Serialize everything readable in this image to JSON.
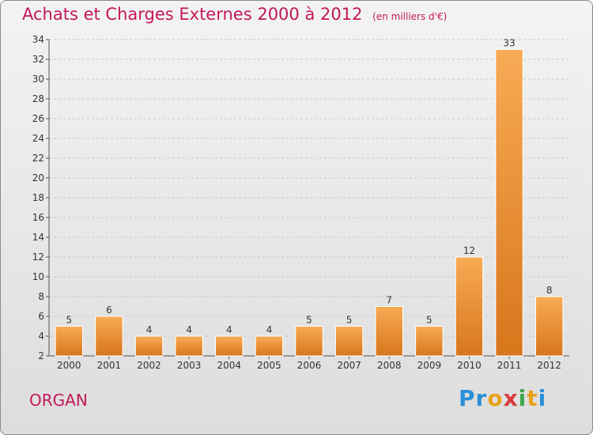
{
  "title": "Achats et Charges Externes 2000 à 2012",
  "subtitle": "(en milliers d'€)",
  "commune": "ORGAN",
  "logo": "Proxiti",
  "colors": {
    "title": "#c2185b",
    "bar_light": "#f6a54e",
    "bar_dark": "#d9771c"
  },
  "chart_data": {
    "type": "bar",
    "title": "Achats et Charges Externes 2000 à 2012",
    "subtitle": "(en milliers d'€)",
    "categories": [
      "2000",
      "2001",
      "2002",
      "2003",
      "2004",
      "2005",
      "2006",
      "2007",
      "2008",
      "2009",
      "2010",
      "2011",
      "2012"
    ],
    "values": [
      5,
      6,
      4,
      4,
      4,
      4,
      5,
      5,
      7,
      5,
      12,
      33,
      8
    ],
    "ylim": [
      2,
      34
    ],
    "yticks": [
      2,
      4,
      6,
      8,
      10,
      12,
      14,
      16,
      18,
      20,
      22,
      24,
      26,
      28,
      30,
      32,
      34
    ],
    "grid": true,
    "data_labels": true
  }
}
